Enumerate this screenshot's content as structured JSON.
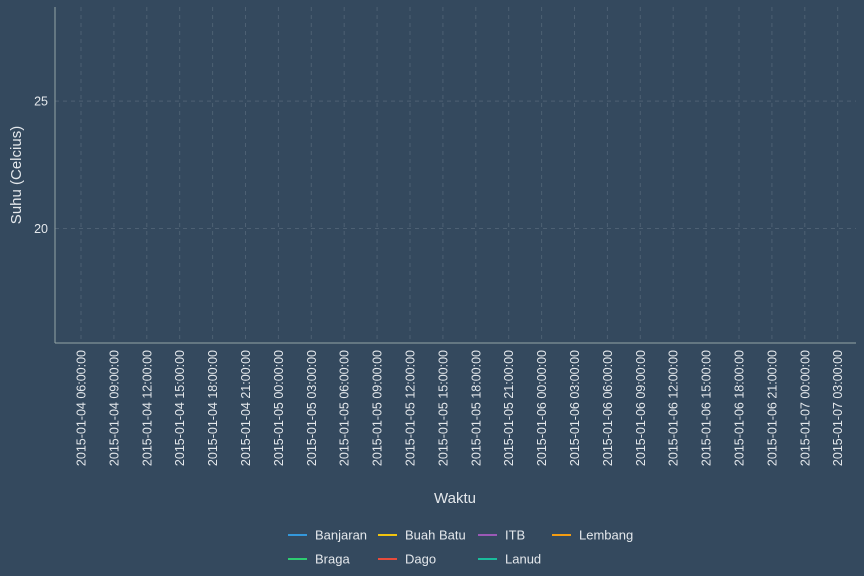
{
  "chart_data": {
    "type": "line",
    "xlabel": "Waktu",
    "ylabel": "Suhu (Celcius)",
    "x_ticks": [
      "2015-01-04 06:00:00",
      "2015-01-04 09:00:00",
      "2015-01-04 12:00:00",
      "2015-01-04 15:00:00",
      "2015-01-04 18:00:00",
      "2015-01-04 21:00:00",
      "2015-01-05 00:00:00",
      "2015-01-05 03:00:00",
      "2015-01-05 06:00:00",
      "2015-01-05 09:00:00",
      "2015-01-05 12:00:00",
      "2015-01-05 15:00:00",
      "2015-01-05 18:00:00",
      "2015-01-05 21:00:00",
      "2015-01-06 00:00:00",
      "2015-01-06 03:00:00",
      "2015-01-06 06:00:00",
      "2015-01-06 09:00:00",
      "2015-01-06 12:00:00",
      "2015-01-06 15:00:00",
      "2015-01-06 18:00:00",
      "2015-01-06 21:00:00",
      "2015-01-07 00:00:00",
      "2015-01-07 03:00:00"
    ],
    "y_ticks": [
      20,
      25
    ],
    "ylim": [
      15.5,
      28.7
    ],
    "grid": true,
    "legend_position": "bottom",
    "series": [
      {
        "name": "Banjaran",
        "color": "#3498db",
        "values": []
      },
      {
        "name": "Braga",
        "color": "#2ecc71",
        "values": []
      },
      {
        "name": "Buah Batu",
        "color": "#f1c40f",
        "values": []
      },
      {
        "name": "Dago",
        "color": "#e74c3c",
        "values": []
      },
      {
        "name": "ITB",
        "color": "#9b59b6",
        "values": []
      },
      {
        "name": "Lanud",
        "color": "#1abc9c",
        "values": []
      },
      {
        "name": "Lembang",
        "color": "#f39c12",
        "values": []
      }
    ],
    "colors": {
      "background": "#34495e",
      "grid": "#4d6073",
      "axis": "#95a5a6",
      "text": "#e4e8ec"
    }
  }
}
